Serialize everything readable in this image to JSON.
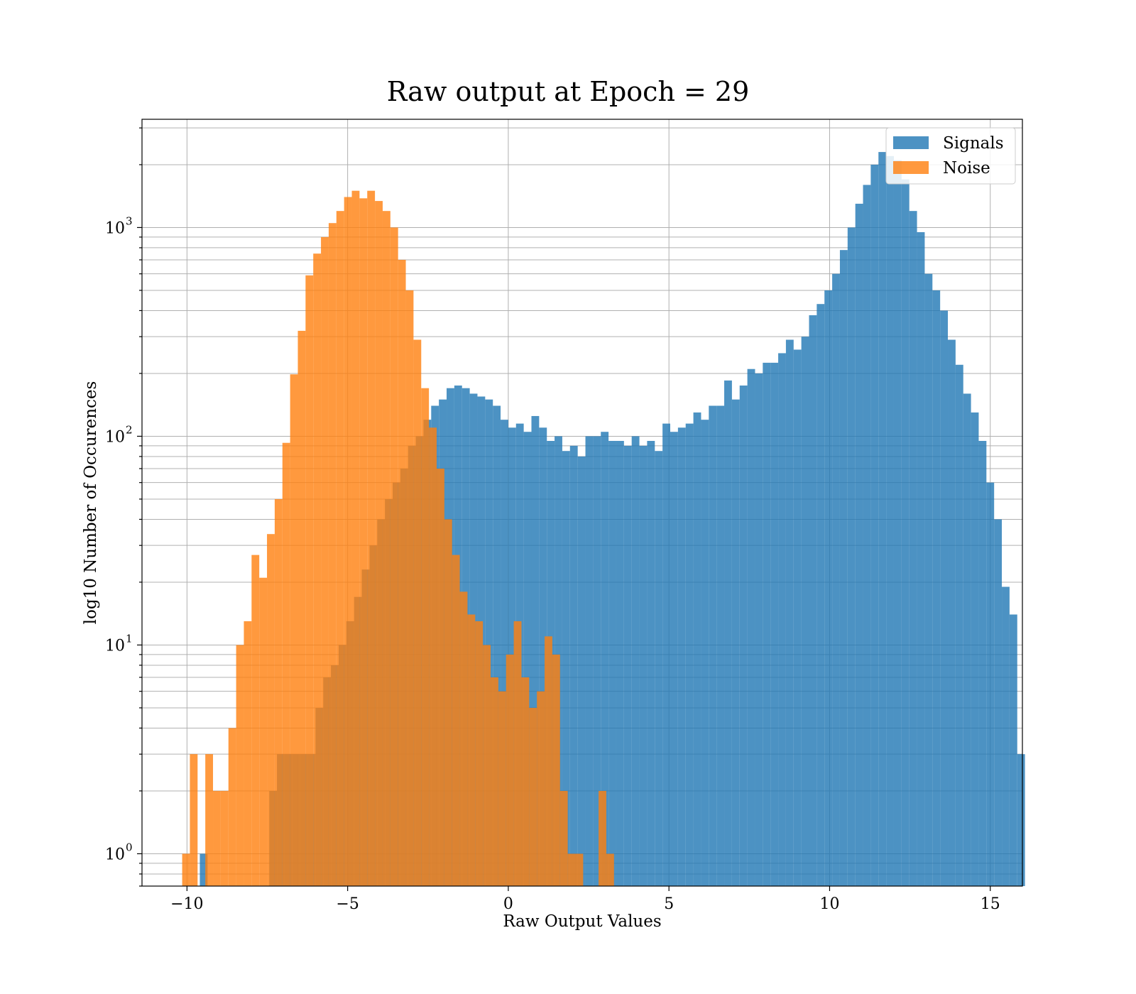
{
  "chart_data": {
    "type": "histogram",
    "title": "Raw output at Epoch = 29",
    "xlabel": "Raw Output Values",
    "ylabel": "log10 Number of Occurences",
    "xlim": [
      -11.4,
      16.0
    ],
    "ylim": [
      0.7,
      3300
    ],
    "yscale": "log",
    "grid": true,
    "grid_minor": true,
    "legend_position": "top-right",
    "x_ticks": [
      {
        "value": -10,
        "label": "−10"
      },
      {
        "value": -5,
        "label": "−5"
      },
      {
        "value": 0,
        "label": "0"
      },
      {
        "value": 5,
        "label": "5"
      },
      {
        "value": 10,
        "label": "10"
      },
      {
        "value": 15,
        "label": "15"
      }
    ],
    "y_ticks": [
      {
        "value": 1,
        "base": "10",
        "exp": "0"
      },
      {
        "value": 10,
        "base": "10",
        "exp": "1"
      },
      {
        "value": 100,
        "base": "10",
        "exp": "2"
      },
      {
        "value": 1000,
        "base": "10",
        "exp": "3"
      }
    ],
    "series": [
      {
        "name": "Signals",
        "color": "#1f77b4",
        "opacity": 0.8,
        "bin_start": -9.6,
        "bin_width": 0.24,
        "counts": [
          1,
          0,
          0,
          0,
          0,
          0,
          0,
          0,
          0,
          2,
          3,
          3,
          3,
          3,
          3,
          5,
          7,
          8,
          10,
          13,
          17,
          23,
          30,
          40,
          50,
          60,
          70,
          90,
          100,
          120,
          140,
          150,
          170,
          175,
          170,
          160,
          155,
          150,
          140,
          120,
          110,
          115,
          105,
          125,
          110,
          95,
          100,
          85,
          90,
          80,
          100,
          100,
          105,
          95,
          95,
          90,
          100,
          90,
          95,
          85,
          115,
          105,
          110,
          115,
          130,
          120,
          140,
          140,
          185,
          150,
          175,
          210,
          200,
          225,
          225,
          250,
          290,
          260,
          300,
          380,
          430,
          500,
          600,
          780,
          1000,
          1300,
          1600,
          2000,
          2300,
          2200,
          2100,
          1700,
          1200,
          950,
          600,
          500,
          400,
          290,
          220,
          160,
          130,
          95,
          60,
          40,
          19,
          14,
          3
        ]
      },
      {
        "name": "Noise",
        "color": "#ff7f0e",
        "opacity": 0.8,
        "bin_start": -10.15,
        "bin_width": 0.24,
        "counts": [
          1,
          3,
          0,
          3,
          2,
          2,
          4,
          10,
          13,
          27,
          21,
          34,
          50,
          93,
          198,
          320,
          590,
          750,
          900,
          1050,
          1200,
          1400,
          1500,
          1380,
          1500,
          1340,
          1200,
          1000,
          700,
          500,
          290,
          170,
          110,
          70,
          40,
          27,
          18,
          14,
          13,
          10,
          7,
          6,
          9,
          13,
          7,
          5,
          6,
          11,
          9,
          2,
          1,
          1,
          0,
          0,
          2,
          1
        ]
      }
    ]
  }
}
